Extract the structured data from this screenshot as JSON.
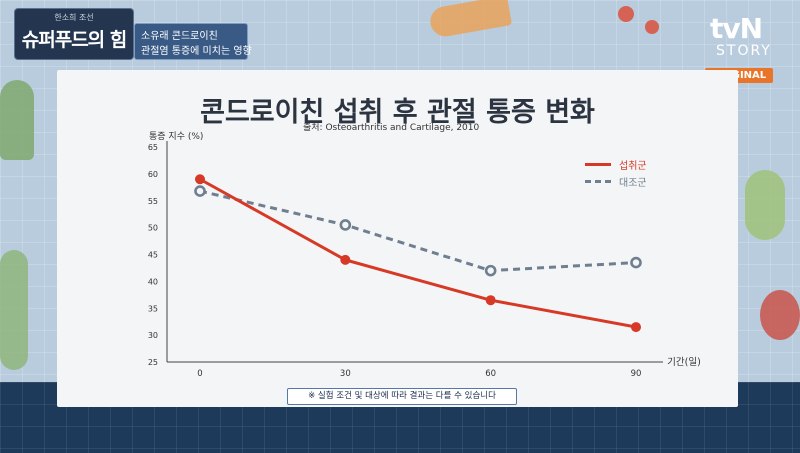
{
  "show": {
    "subtitle": "한소희 조선",
    "title": "슈퍼푸드의 힘",
    "caption_line1": "소유래 콘드로이친",
    "caption_line2": "관절염 통증에 미치는 영향"
  },
  "channel": {
    "logo": "tvN",
    "story": "STORY",
    "badge": "ORIGINAL"
  },
  "footnote": "※ 실험 조건 및 대상에 따라 결과는 다를 수 있습니다",
  "colors": {
    "intake": "#d63a26",
    "control": "#6f7f8f",
    "card": "#f4f5f7",
    "background": "#b9ccdd",
    "band": "#1d3a5a",
    "badge": "#e8752a"
  },
  "chart_data": {
    "type": "line",
    "title": "콘드로이친 섭취 후 관절 통증 변화",
    "source": "출처: Osteoarthritis and Cartilage, 2010",
    "xlabel": "기간(일)",
    "ylabel": "통증 지수 (%)",
    "x": [
      0,
      30,
      60,
      90
    ],
    "xlim": [
      0,
      90
    ],
    "ylim": [
      25,
      65
    ],
    "yticks": [
      25,
      30,
      35,
      40,
      45,
      50,
      55,
      60,
      65
    ],
    "grid": false,
    "legend_position": "top-right",
    "series": [
      {
        "name": "섭취군",
        "values": [
          59,
          44,
          36.5,
          31.5
        ],
        "style": "solid"
      },
      {
        "name": "대조군",
        "values": [
          56.8,
          50.5,
          42,
          43.5
        ],
        "style": "dashed"
      }
    ]
  }
}
